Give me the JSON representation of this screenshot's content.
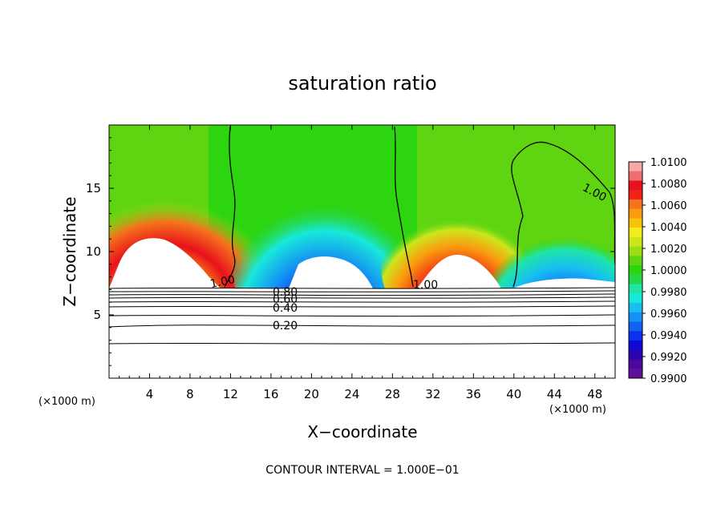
{
  "chart_data": {
    "type": "heatmap",
    "title": "saturation ratio",
    "xlabel": "X−coordinate",
    "ylabel": "Z−coordinate",
    "x_unit_left": "(×1000 m)",
    "x_unit_right": "(×1000 m)",
    "xlim": [
      0,
      50
    ],
    "ylim": [
      0,
      20
    ],
    "xticks": [
      4,
      8,
      12,
      16,
      20,
      24,
      28,
      32,
      36,
      40,
      44,
      48
    ],
    "yticks": [
      5,
      10,
      15
    ],
    "colorbar": {
      "levels": [
        "1.0100",
        "1.0080",
        "1.0060",
        "1.0040",
        "1.0020",
        "1.0000",
        "0.9980",
        "0.9960",
        "0.9940",
        "0.9920",
        "0.9900"
      ],
      "colors": [
        "#f7a8a8",
        "#f26d6d",
        "#e8111d",
        "#ef2417",
        "#f5731b",
        "#fa9c0e",
        "#f8c20c",
        "#f0ee1c",
        "#cde61c",
        "#9ade16",
        "#5fd512",
        "#2dd410",
        "#23d84a",
        "#1fe5a6",
        "#18e8da",
        "#17bff2",
        "#1491f2",
        "#1261f0",
        "#0d2ff0",
        "#1008d5",
        "#2a04b0",
        "#4d07a0",
        "#600f9a"
      ]
    },
    "contour_levels": [
      0.2,
      0.4,
      0.6,
      0.8,
      1.0
    ],
    "contour_labels": [
      "1.00",
      "1.00",
      "1.00",
      "0.80",
      "0.60",
      "0.40",
      "0.20"
    ],
    "contour_interval": "CONTOUR INTERVAL = 1.000E−01"
  }
}
